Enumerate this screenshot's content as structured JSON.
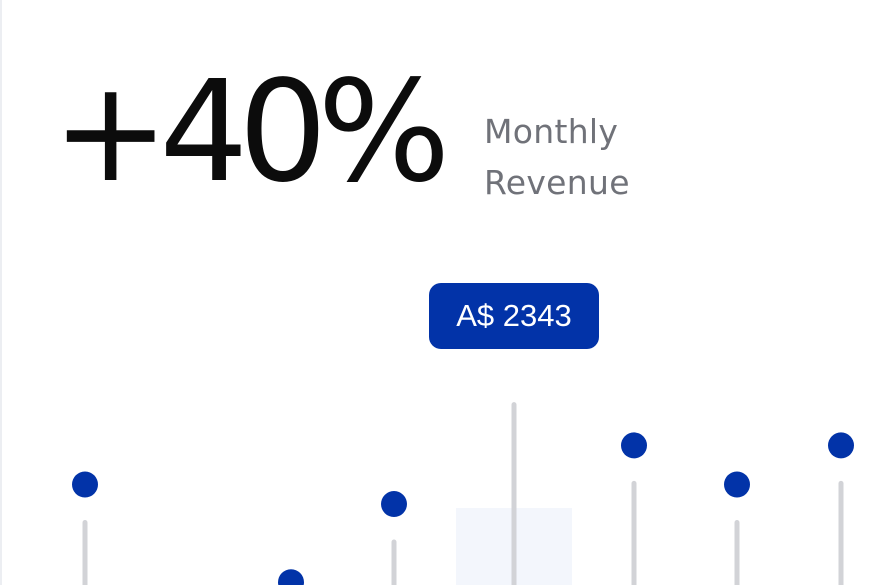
{
  "headline": {
    "value": "+40%",
    "caption_line1": "Monthly",
    "caption_line2": "Revenue"
  },
  "tooltip": {
    "label": "A$ 2343"
  },
  "colors": {
    "accent": "#0233a8",
    "stem": "#d2d3d7",
    "highlight": "#f3f6fc",
    "text": "#0c0c0c",
    "muted": "#707279"
  },
  "chart_data": {
    "type": "scatter",
    "style": "lollipop",
    "values": [
      1950,
      1450,
      1850,
      2343,
      2150,
      1950,
      2150
    ],
    "highlighted_index": 3,
    "ylim": [
      1400,
      2500
    ]
  }
}
